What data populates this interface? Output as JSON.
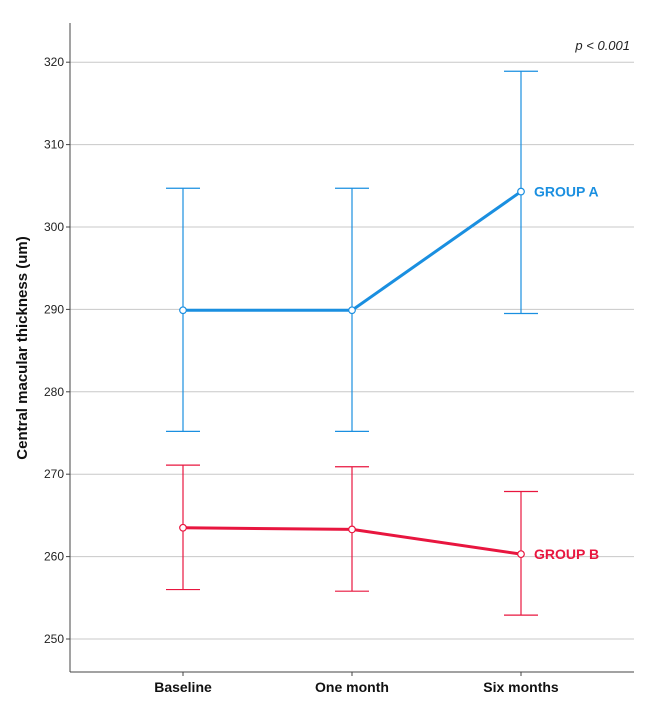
{
  "chart_data": {
    "type": "line",
    "title": "",
    "xlabel": "",
    "ylabel": "Central macular thickness (um)",
    "ylim": [
      245,
      325
    ],
    "yticks": [
      250,
      260,
      270,
      280,
      290,
      300,
      310,
      320
    ],
    "grid": true,
    "annotation": "p < 0.001",
    "categories": [
      "Baseline",
      "One month",
      "Six months"
    ],
    "series": [
      {
        "name": "GROUP A",
        "color": "#1a8fe0",
        "values": [
          289.9,
          289.9,
          304.3
        ],
        "error_low": [
          275.2,
          275.2,
          289.5
        ],
        "error_high": [
          304.7,
          304.7,
          318.9
        ]
      },
      {
        "name": "GROUP B",
        "color": "#e8163f",
        "values": [
          263.5,
          263.3,
          260.3
        ],
        "error_low": [
          256.0,
          255.8,
          252.9
        ],
        "error_high": [
          271.1,
          270.9,
          267.9
        ]
      }
    ]
  }
}
